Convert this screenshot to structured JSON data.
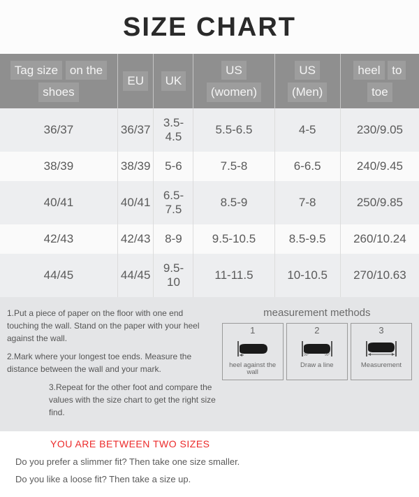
{
  "title": "SIZE CHART",
  "table": {
    "header_bg": "#8f8f8f",
    "header_fg": "#f5f5f5",
    "row_odd_bg": "#edeef0",
    "row_even_bg": "#fafafa",
    "cell_fg": "#5a5a5a",
    "columns": [
      {
        "lines": [
          "Tag size",
          "on the",
          "shoes"
        ]
      },
      {
        "lines": [
          "EU"
        ]
      },
      {
        "lines": [
          "UK"
        ]
      },
      {
        "lines": [
          "US",
          "(women)"
        ]
      },
      {
        "lines": [
          "US",
          "(Men)"
        ]
      },
      {
        "lines": [
          "heel",
          "to",
          "toe"
        ]
      }
    ],
    "rows": [
      [
        "36/37",
        "36/37",
        "3.5-4.5",
        "5.5-6.5",
        "4-5",
        "230/9.05"
      ],
      [
        "38/39",
        "38/39",
        "5-6",
        "7.5-8",
        "6-6.5",
        "240/9.45"
      ],
      [
        "40/41",
        "40/41",
        "6.5-7.5",
        "8.5-9",
        "7-8",
        "250/9.85"
      ],
      [
        "42/43",
        "42/43",
        "8-9",
        "9.5-10.5",
        "8.5-9.5",
        "260/10.24"
      ],
      [
        "44/45",
        "44/45",
        "9.5-10",
        "11-11.5",
        "10-10.5",
        "270/10.63"
      ]
    ]
  },
  "instructions": {
    "step1": "1.Put a piece of paper on the floor with one end touching the wall. Stand on the paper with your heel against the wall.",
    "step2": "2.Mark where your longest toe ends. Measure the distance between the wall and your mark.",
    "step3": "3.Repeat for the other foot and compare the values with the size chart to get the right size find."
  },
  "methods": {
    "title": "measurement methods",
    "items": [
      {
        "num": "1",
        "label": "heel against the wall"
      },
      {
        "num": "2",
        "label": "Draw a line"
      },
      {
        "num": "3",
        "label": "Measurement"
      }
    ]
  },
  "two_sizes": {
    "heading": "YOU ARE BETWEEN TWO SIZES",
    "q1": "Do you prefer a slimmer fit? Then take one size smaller.",
    "q2": "Do you like a loose fit? Then take a size up."
  },
  "colors": {
    "title_color": "#2a2a2a",
    "lower_bg": "#e4e5e7",
    "warn_color": "#ec2a2a",
    "foot_fill": "#1a1a1a"
  }
}
